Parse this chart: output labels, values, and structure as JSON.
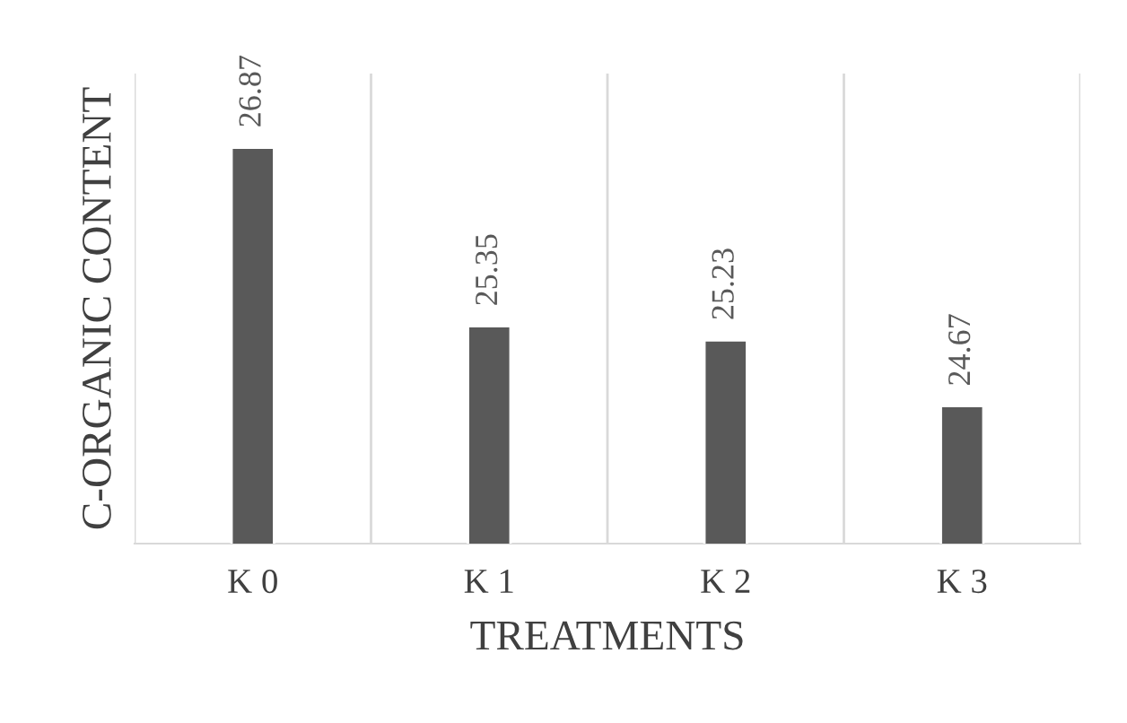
{
  "chart_data": {
    "type": "bar",
    "xlabel": "TREATMENTS",
    "ylabel": "C-ORGANIC CONTENT",
    "categories": [
      "K 0",
      "K 1",
      "K 2",
      "K 3"
    ],
    "values": [
      26.87,
      25.35,
      25.23,
      24.67
    ],
    "color": "#595959",
    "ylim": [
      23.5,
      27.5
    ],
    "data_labels": true,
    "grid": "x",
    "tick_labels": "x"
  }
}
